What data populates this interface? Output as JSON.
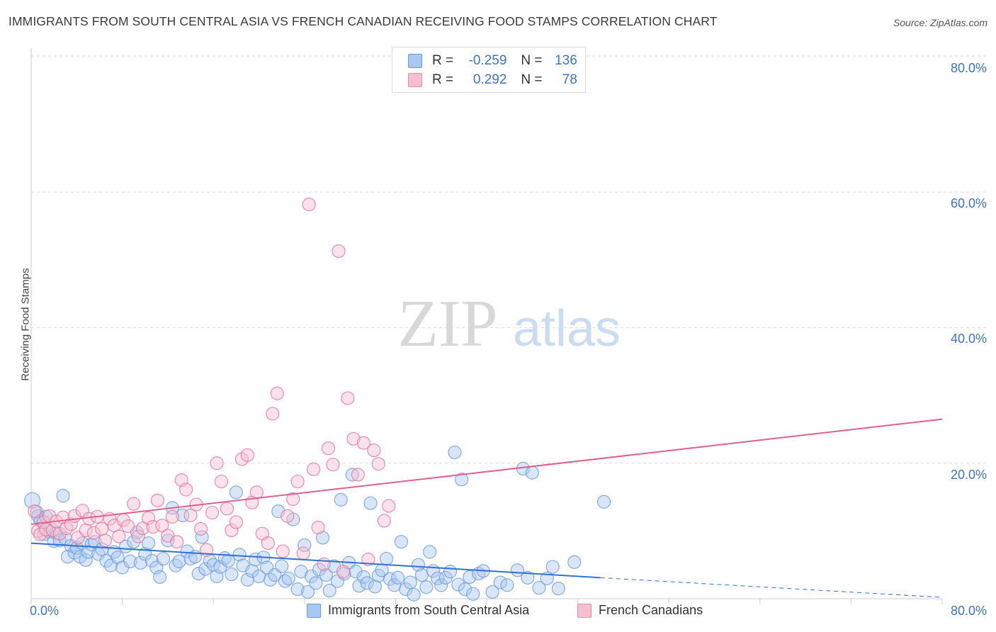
{
  "title": "IMMIGRANTS FROM SOUTH CENTRAL ASIA VS FRENCH CANADIAN RECEIVING FOOD STAMPS CORRELATION CHART",
  "source": "Source: ZipAtlas.com",
  "watermark": {
    "zip": "ZIP",
    "atlas": "atlas"
  },
  "legend": {
    "r_label": "R =",
    "n_label": "N =",
    "rows": [
      {
        "r": "-0.259",
        "n": "136",
        "color": "#a9c7f0",
        "border": "#6a9be0"
      },
      {
        "r": "0.292",
        "n": "78",
        "color": "#f6bfd0",
        "border": "#e98aa8"
      }
    ]
  },
  "chart_data": {
    "type": "scatter",
    "xlabel": "",
    "ylabel": "Receiving Food Stamps",
    "xlim": [
      0,
      80
    ],
    "ylim": [
      0,
      80
    ],
    "y_ticks": [
      "80.0%",
      "60.0%",
      "40.0%",
      "20.0%"
    ],
    "x_ticks": [
      "0.0%",
      "80.0%"
    ],
    "grid": "horizontal dashed",
    "legend_position": "top-center",
    "series": [
      {
        "name": "Immigrants from South Central Asia",
        "color": "#6a9be0",
        "fill": "#a9c7f0",
        "trend": {
          "x0": 0,
          "y0": 8.2,
          "x1": 50,
          "y1": 3.1,
          "dash_to": 80,
          "dash_y": 0.2
        },
        "points": [
          [
            0.1,
            14.5
          ],
          [
            0.5,
            12.8
          ],
          [
            0.6,
            12.2
          ],
          [
            0.8,
            11.5
          ],
          [
            1.1,
            9.5
          ],
          [
            1.3,
            12.1
          ],
          [
            1.6,
            9.9
          ],
          [
            2,
            8.5
          ],
          [
            2.2,
            9.7
          ],
          [
            2.5,
            8.6
          ],
          [
            2.8,
            15.2
          ],
          [
            3,
            8.9
          ],
          [
            3.2,
            6.2
          ],
          [
            3.5,
            7.8
          ],
          [
            3.8,
            6.8
          ],
          [
            4,
            7.5
          ],
          [
            4.3,
            6.2
          ],
          [
            4.5,
            8.2
          ],
          [
            4.8,
            5.7
          ],
          [
            5,
            6.9
          ],
          [
            5.3,
            8.0
          ],
          [
            5.6,
            8.4
          ],
          [
            5.9,
            6.6
          ],
          [
            6.2,
            7.3
          ],
          [
            6.6,
            5.6
          ],
          [
            7.0,
            4.9
          ],
          [
            7.3,
            6.9
          ],
          [
            7.6,
            6.1
          ],
          [
            8.0,
            4.6
          ],
          [
            8.3,
            7.7
          ],
          [
            8.7,
            5.5
          ],
          [
            9.0,
            8.4
          ],
          [
            9.3,
            9.8
          ],
          [
            9.6,
            5.3
          ],
          [
            10.0,
            6.6
          ],
          [
            10.3,
            8.2
          ],
          [
            10.6,
            5.6
          ],
          [
            11.0,
            4.6
          ],
          [
            11.3,
            3.2
          ],
          [
            11.6,
            5.9
          ],
          [
            12.0,
            8.6
          ],
          [
            12.4,
            13.4
          ],
          [
            12.7,
            4.9
          ],
          [
            13.0,
            5.5
          ],
          [
            13.3,
            12.3
          ],
          [
            13.7,
            7.0
          ],
          [
            14.0,
            5.9
          ],
          [
            14.4,
            6.2
          ],
          [
            14.7,
            3.7
          ],
          [
            15.0,
            9.1
          ],
          [
            15.3,
            4.4
          ],
          [
            15.7,
            5.6
          ],
          [
            16.0,
            5.0
          ],
          [
            16.3,
            3.3
          ],
          [
            16.6,
            4.7
          ],
          [
            17.0,
            6.0
          ],
          [
            17.3,
            5.6
          ],
          [
            17.6,
            3.6
          ],
          [
            18.0,
            15.7
          ],
          [
            18.3,
            6.5
          ],
          [
            18.6,
            4.9
          ],
          [
            19.0,
            2.8
          ],
          [
            19.4,
            4.1
          ],
          [
            19.7,
            5.8
          ],
          [
            20.0,
            3.3
          ],
          [
            20.4,
            6.1
          ],
          [
            20.7,
            4.6
          ],
          [
            21.0,
            2.8
          ],
          [
            21.4,
            3.5
          ],
          [
            21.7,
            12.9
          ],
          [
            22.0,
            4.8
          ],
          [
            22.3,
            2.6
          ],
          [
            22.6,
            3.0
          ],
          [
            23.0,
            11.7
          ],
          [
            23.4,
            1.4
          ],
          [
            23.7,
            4.0
          ],
          [
            24.0,
            7.9
          ],
          [
            24.3,
            1.0
          ],
          [
            24.6,
            3.3
          ],
          [
            25.0,
            2.3
          ],
          [
            25.3,
            4.3
          ],
          [
            25.6,
            9.0
          ],
          [
            25.9,
            3.5
          ],
          [
            26.2,
            1.2
          ],
          [
            26.6,
            4.8
          ],
          [
            26.9,
            2.6
          ],
          [
            27.2,
            14.6
          ],
          [
            27.5,
            3.7
          ],
          [
            27.9,
            5.3
          ],
          [
            28.2,
            18.3
          ],
          [
            28.5,
            4.0
          ],
          [
            28.8,
            1.9
          ],
          [
            29.2,
            3.2
          ],
          [
            29.5,
            2.3
          ],
          [
            29.8,
            14.1
          ],
          [
            30.2,
            1.8
          ],
          [
            30.5,
            3.4
          ],
          [
            30.8,
            4.2
          ],
          [
            31.2,
            5.9
          ],
          [
            31.5,
            2.9
          ],
          [
            31.9,
            2.0
          ],
          [
            32.2,
            3.1
          ],
          [
            32.5,
            8.4
          ],
          [
            32.9,
            1.4
          ],
          [
            33.3,
            2.4
          ],
          [
            33.6,
            0.6
          ],
          [
            34.0,
            5.0
          ],
          [
            34.3,
            3.5
          ],
          [
            34.7,
            1.7
          ],
          [
            35.0,
            6.9
          ],
          [
            35.3,
            4.1
          ],
          [
            35.7,
            3.0
          ],
          [
            36.0,
            2.0
          ],
          [
            36.4,
            3.1
          ],
          [
            36.8,
            4.0
          ],
          [
            37.2,
            21.6
          ],
          [
            37.5,
            2.1
          ],
          [
            37.8,
            17.6
          ],
          [
            38.1,
            1.4
          ],
          [
            38.5,
            3.2
          ],
          [
            38.8,
            0.7
          ],
          [
            39.3,
            3.7
          ],
          [
            39.7,
            4.1
          ],
          [
            40.5,
            1.0
          ],
          [
            41.2,
            2.4
          ],
          [
            41.8,
            2.0
          ],
          [
            42.7,
            4.2
          ],
          [
            43.2,
            19.2
          ],
          [
            43.6,
            3.1
          ],
          [
            44.0,
            18.6
          ],
          [
            44.6,
            1.6
          ],
          [
            45.3,
            3.0
          ],
          [
            45.8,
            4.7
          ],
          [
            46.3,
            1.5
          ],
          [
            47.7,
            5.4
          ],
          [
            50.3,
            14.3
          ]
        ]
      },
      {
        "name": "French Canadians",
        "color": "#e8739a",
        "fill": "#f6bfd0",
        "trend": {
          "x0": 0,
          "y0": 11.0,
          "x1": 80,
          "y1": 26.5
        },
        "points": [
          [
            0.3,
            12.9
          ],
          [
            0.6,
            10.0
          ],
          [
            0.8,
            9.5
          ],
          [
            1.1,
            11.3
          ],
          [
            1.3,
            10.2
          ],
          [
            1.6,
            12.2
          ],
          [
            1.9,
            10.1
          ],
          [
            2.2,
            11.4
          ],
          [
            2.5,
            9.6
          ],
          [
            2.8,
            12.0
          ],
          [
            3.1,
            10.4
          ],
          [
            3.5,
            11.0
          ],
          [
            3.8,
            12.2
          ],
          [
            4.1,
            9.0
          ],
          [
            4.5,
            13.0
          ],
          [
            4.8,
            10.1
          ],
          [
            5.1,
            11.8
          ],
          [
            5.5,
            9.7
          ],
          [
            5.8,
            12.1
          ],
          [
            6.2,
            10.3
          ],
          [
            6.5,
            8.6
          ],
          [
            6.9,
            11.8
          ],
          [
            7.3,
            10.8
          ],
          [
            7.7,
            9.2
          ],
          [
            8.1,
            11.6
          ],
          [
            8.5,
            10.7
          ],
          [
            9.0,
            14.0
          ],
          [
            9.4,
            9.2
          ],
          [
            9.8,
            10.4
          ],
          [
            10.3,
            11.9
          ],
          [
            10.7,
            10.6
          ],
          [
            11.1,
            14.5
          ],
          [
            11.5,
            10.8
          ],
          [
            12.0,
            9.3
          ],
          [
            12.4,
            12.1
          ],
          [
            12.8,
            8.4
          ],
          [
            13.2,
            17.5
          ],
          [
            13.6,
            16.1
          ],
          [
            14.0,
            12.3
          ],
          [
            14.5,
            13.9
          ],
          [
            14.9,
            10.3
          ],
          [
            15.4,
            7.2
          ],
          [
            15.9,
            12.7
          ],
          [
            16.3,
            20.0
          ],
          [
            16.7,
            17.3
          ],
          [
            17.2,
            13.3
          ],
          [
            17.6,
            10.1
          ],
          [
            18.0,
            11.3
          ],
          [
            18.5,
            20.6
          ],
          [
            19.0,
            21.2
          ],
          [
            19.4,
            14.2
          ],
          [
            19.8,
            15.7
          ],
          [
            20.3,
            9.6
          ],
          [
            20.8,
            8.2
          ],
          [
            21.2,
            27.3
          ],
          [
            21.6,
            30.3
          ],
          [
            22.1,
            7.0
          ],
          [
            22.5,
            12.2
          ],
          [
            23.0,
            14.7
          ],
          [
            23.4,
            17.3
          ],
          [
            23.9,
            6.7
          ],
          [
            24.4,
            58.2
          ],
          [
            24.8,
            19.1
          ],
          [
            25.2,
            10.5
          ],
          [
            25.7,
            5.1
          ],
          [
            26.1,
            22.2
          ],
          [
            26.5,
            19.8
          ],
          [
            27.0,
            51.3
          ],
          [
            27.4,
            4.0
          ],
          [
            27.8,
            29.6
          ],
          [
            28.3,
            23.6
          ],
          [
            28.7,
            18.3
          ],
          [
            29.2,
            23.0
          ],
          [
            29.6,
            5.8
          ],
          [
            30.1,
            21.9
          ],
          [
            30.5,
            19.9
          ],
          [
            31.0,
            11.5
          ],
          [
            31.4,
            13.7
          ]
        ]
      }
    ]
  },
  "bottom_legend": [
    {
      "label": "Immigrants from South Central Asia",
      "color": "#a9c7f0",
      "border": "#6a9be0"
    },
    {
      "label": "French Canadians",
      "color": "#f6bfd0",
      "border": "#e98aa8"
    }
  ]
}
